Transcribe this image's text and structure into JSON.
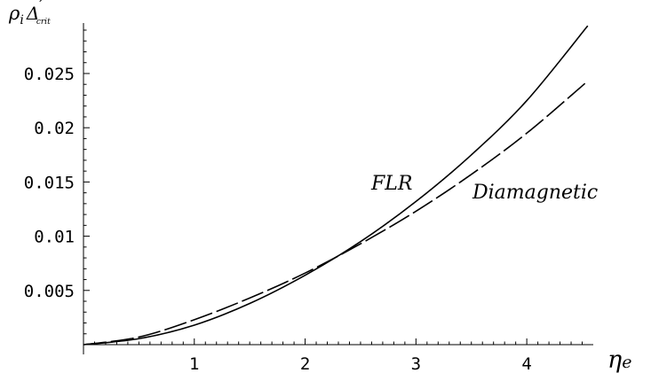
{
  "chart_data": {
    "type": "line",
    "title": "",
    "xlabel": "η_e",
    "ylabel": "ρ_i Δ'_crit",
    "xlim": [
      0,
      4.6
    ],
    "ylim": [
      0,
      0.029
    ],
    "x_ticks": [
      {
        "value": 1,
        "label": "1"
      },
      {
        "value": 2,
        "label": "2"
      },
      {
        "value": 3,
        "label": "3"
      },
      {
        "value": 4,
        "label": "4"
      }
    ],
    "y_ticks": [
      {
        "value": 0.005,
        "label": "0.005"
      },
      {
        "value": 0.01,
        "label": "0.01"
      },
      {
        "value": 0.015,
        "label": "0.015"
      },
      {
        "value": 0.02,
        "label": "0.02"
      },
      {
        "value": 0.025,
        "label": "0.025"
      }
    ],
    "grid": false,
    "legend": "none",
    "series": [
      {
        "name": "FLR",
        "style": "solid",
        "color": "#000000",
        "x": [
          0,
          0.5,
          1,
          1.5,
          2,
          2.5,
          3,
          3.5,
          4,
          4.55
        ],
        "y": [
          0,
          0.00055,
          0.0018,
          0.0038,
          0.0064,
          0.0095,
          0.0132,
          0.0175,
          0.0225,
          0.0294
        ]
      },
      {
        "name": "Diamagnetic",
        "style": "dashed",
        "color": "#000000",
        "x": [
          0,
          0.5,
          1,
          1.5,
          2,
          2.5,
          3,
          3.5,
          4,
          4.55
        ],
        "y": [
          0,
          0.0007,
          0.0023,
          0.0043,
          0.0066,
          0.0093,
          0.0123,
          0.0157,
          0.0195,
          0.0243
        ]
      }
    ]
  }
}
